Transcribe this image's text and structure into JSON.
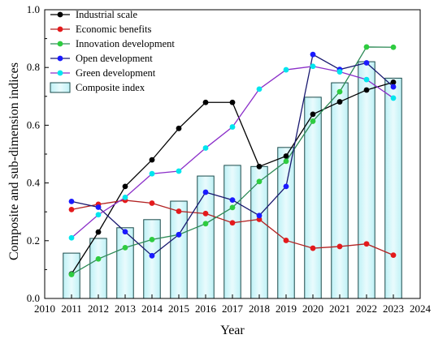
{
  "chart_data": {
    "type": "bar+line",
    "xlabel": "Year",
    "ylabel": "Composite and sub-dimension indices",
    "xlim": [
      2010,
      2024
    ],
    "ylim": [
      0.0,
      1.0
    ],
    "x_ticks": [
      "2010",
      "2011",
      "2012",
      "2013",
      "2014",
      "2015",
      "2016",
      "2017",
      "2018",
      "2019",
      "2020",
      "2021",
      "2022",
      "2023",
      "2024"
    ],
    "y_ticks": [
      "0.0",
      "0.2",
      "0.4",
      "0.6",
      "0.8",
      "1.0"
    ],
    "years": [
      2011,
      2012,
      2013,
      2014,
      2015,
      2016,
      2017,
      2018,
      2019,
      2020,
      2021,
      2022,
      2023
    ],
    "bars": {
      "name": "Composite index",
      "values": [
        0.157,
        0.208,
        0.245,
        0.273,
        0.337,
        0.424,
        0.461,
        0.457,
        0.523,
        0.697,
        0.747,
        0.82,
        0.763
      ]
    },
    "series": [
      {
        "name": "Industrial scale",
        "color": "#000000",
        "values": [
          0.085,
          0.23,
          0.388,
          0.48,
          0.589,
          0.679,
          0.679,
          0.457,
          0.493,
          0.638,
          0.681,
          0.722,
          0.749
        ]
      },
      {
        "name": "Economic benefits",
        "color": "#e41a1c",
        "values": [
          0.308,
          0.326,
          0.34,
          0.33,
          0.302,
          0.294,
          0.262,
          0.274,
          0.201,
          0.174,
          0.18,
          0.189,
          0.15
        ]
      },
      {
        "name": "Innovation development",
        "color": "#2ecc40",
        "values": [
          0.083,
          0.137,
          0.176,
          0.204,
          0.221,
          0.259,
          0.315,
          0.405,
          0.475,
          0.614,
          0.716,
          0.871,
          0.87
        ]
      },
      {
        "name": "Open development",
        "color": "#1a1aff",
        "values": [
          0.336,
          0.316,
          0.231,
          0.148,
          0.221,
          0.368,
          0.341,
          0.287,
          0.388,
          0.845,
          0.793,
          0.816,
          0.733
        ]
      },
      {
        "name": "Green development",
        "color": "#00e5ee",
        "values": [
          0.21,
          0.29,
          0.35,
          0.432,
          0.441,
          0.521,
          0.594,
          0.725,
          0.792,
          0.804,
          0.785,
          0.758,
          0.694
        ]
      }
    ],
    "line_colors": {
      "Industrial scale": "#000000",
      "Economic benefits": "#b22222",
      "Innovation development": "#2e8b57",
      "Open development": "#191970",
      "Green development": "#8b2fc9"
    },
    "bar_color": "#c8f4f8",
    "legend_position": "top-left"
  }
}
